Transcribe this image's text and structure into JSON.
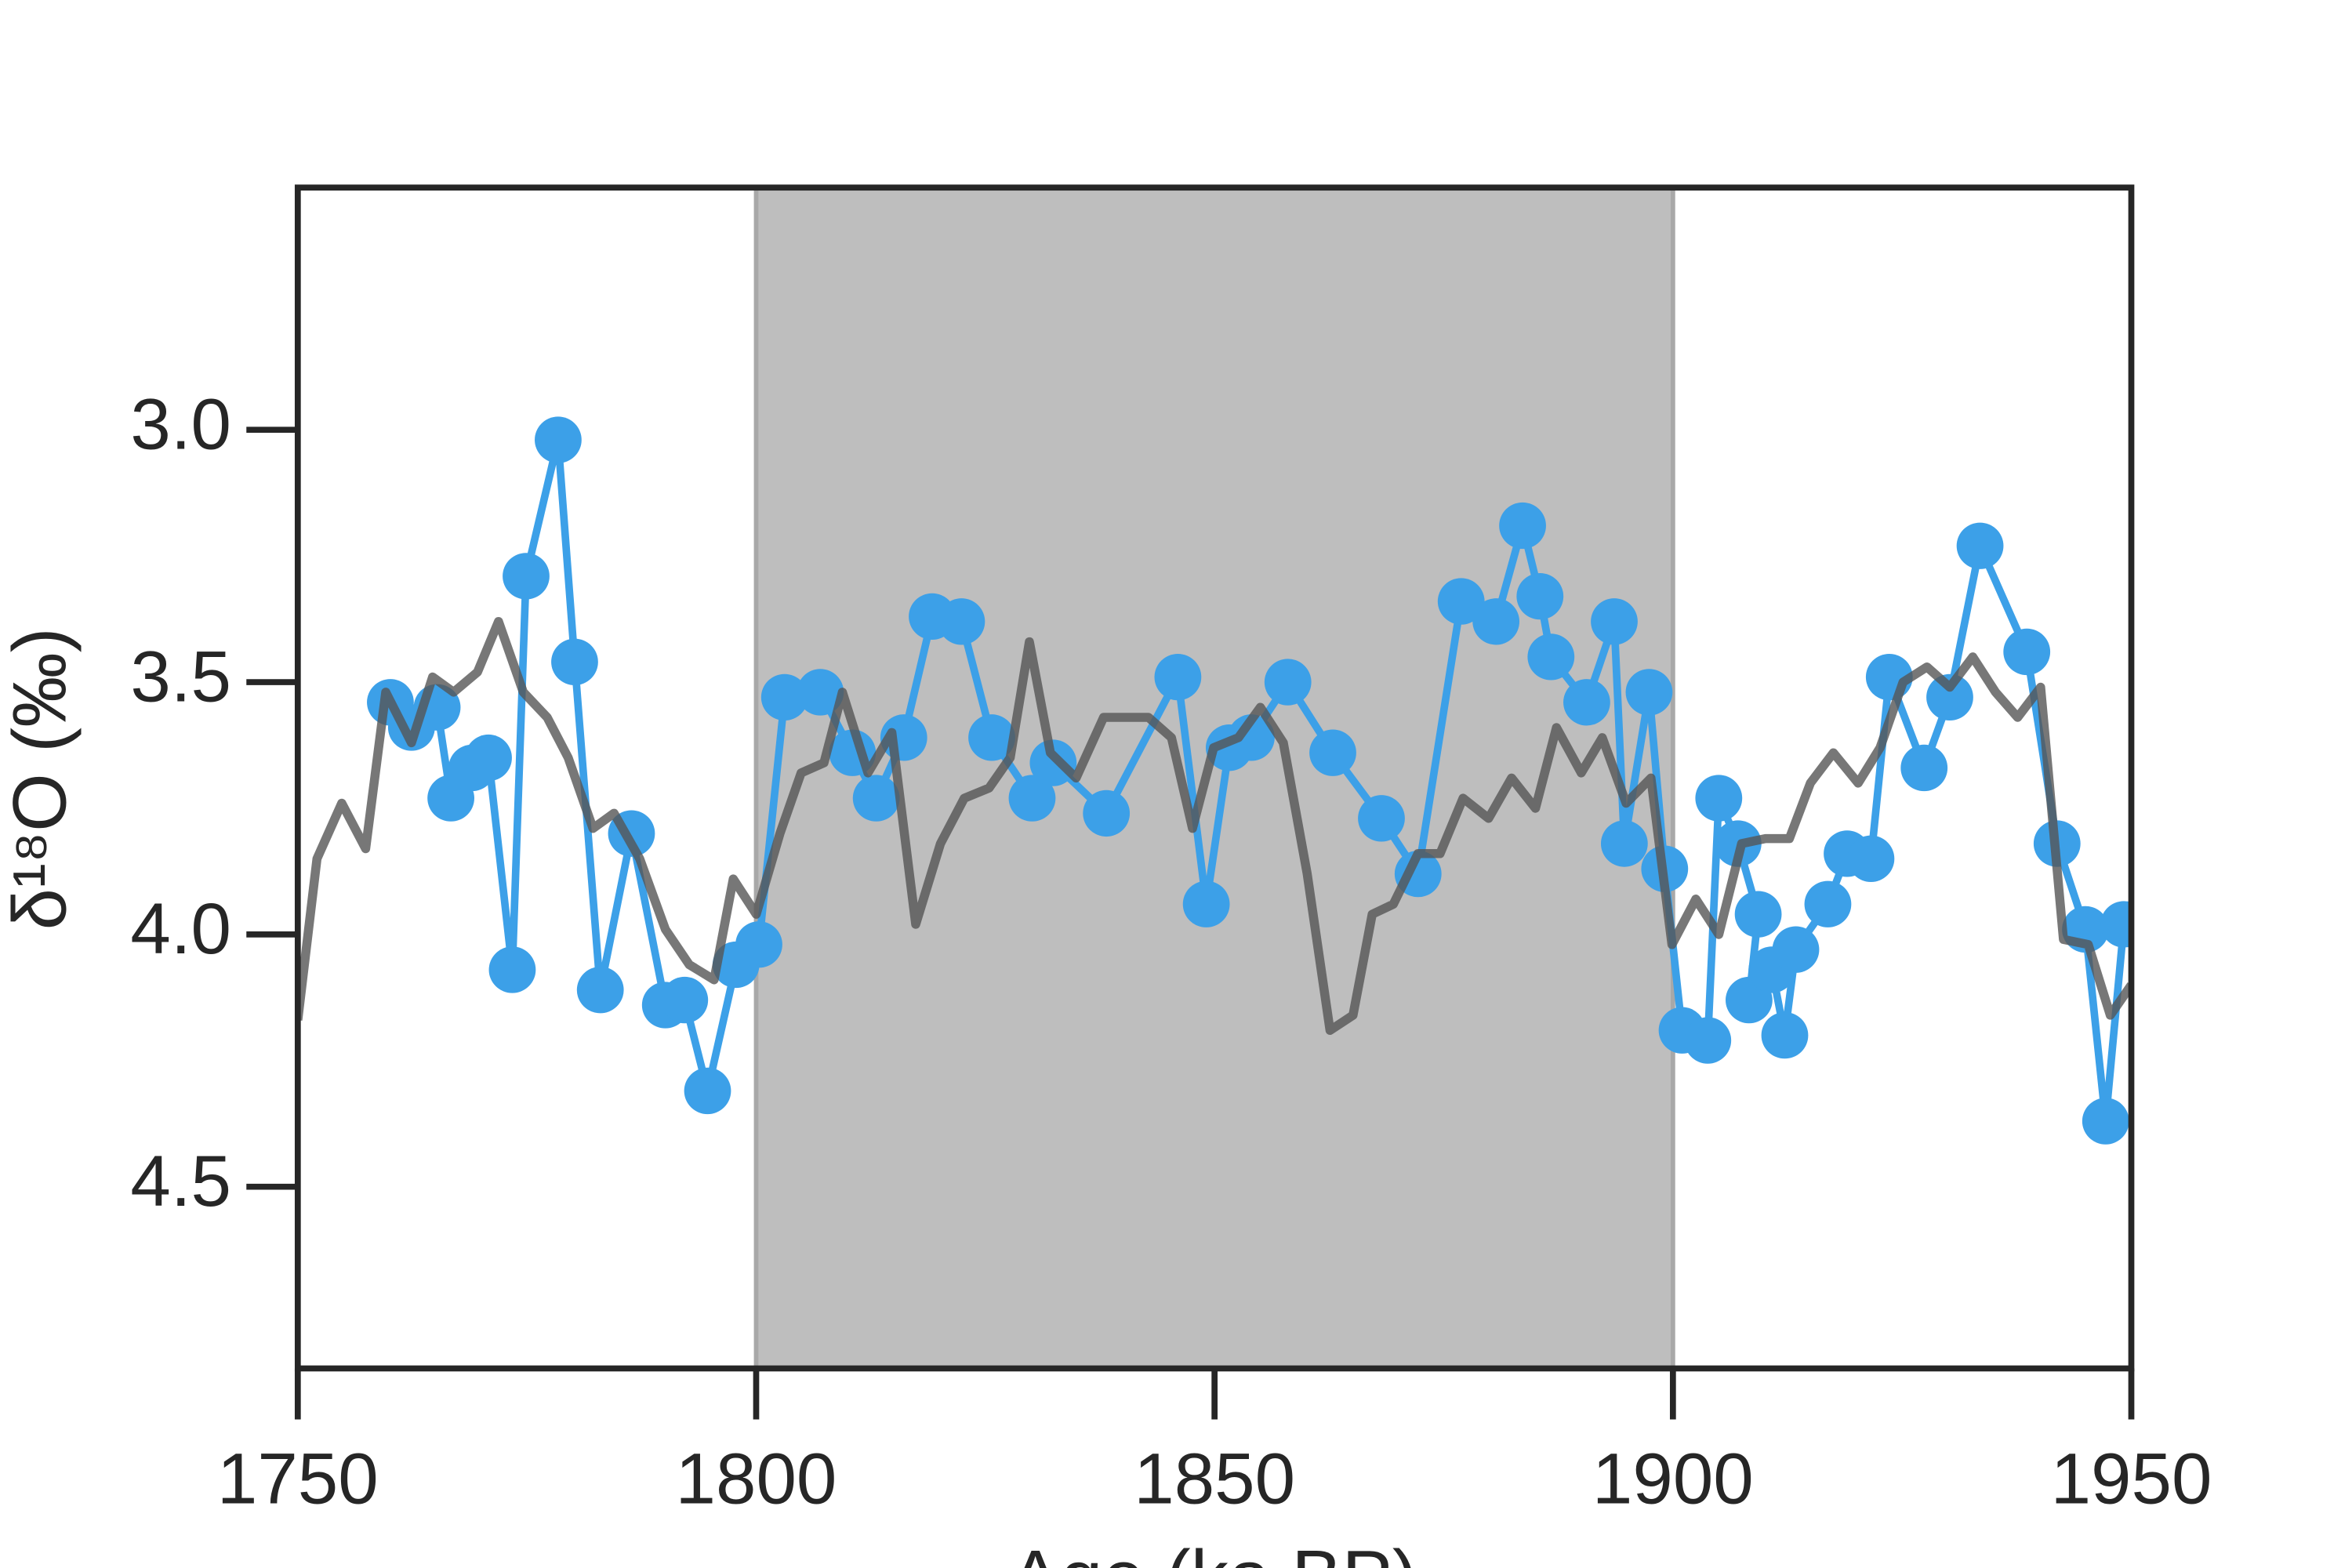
{
  "chart_data": {
    "type": "line",
    "xlabel": "Age (ka BP)",
    "ylabel": "δ¹⁸O (‰)",
    "xlim": [
      1750,
      1950
    ],
    "xticks": [
      1750,
      1800,
      1850,
      1900,
      1950
    ],
    "ylim": [
      2.52,
      4.86
    ],
    "yticks": [
      {
        "value": 3,
        "label": "3.0"
      },
      3.5,
      {
        "value": 4,
        "label": "4.0"
      },
      4.5
    ],
    "y_inverted": true,
    "spans": [
      {
        "x0": 1800,
        "x1": 1900,
        "color": "#bebebe"
      }
    ],
    "series": [
      {
        "color": "#3ca0e8",
        "marker": true,
        "x": [
          1760.1,
          1762.4,
          1765.2,
          1766.7,
          1769.0,
          1770.8,
          1773.4,
          1774.9,
          1778.4,
          1780.2,
          1783.0,
          1786.4,
          1790.1,
          1792.2,
          1794.7,
          1797.8,
          1800.3,
          1803.1,
          1807.0,
          1810.5,
          1813.1,
          1816.1,
          1819.2,
          1822.4,
          1825.7,
          1830.1,
          1832.4,
          1838.2,
          1846.0,
          1849.1,
          1851.6,
          1854.0,
          1858.0,
          1862.9,
          1868.2,
          1872.2,
          1876.9,
          1880.7,
          1883.6,
          1885.5,
          1886.7,
          1890.6,
          1893.6,
          1894.7,
          1897.4,
          1899.1,
          1901.0,
          1903.8,
          1905.0,
          1907.1,
          1909.3,
          1908.3,
          1910.8,
          1912.2,
          1913.4,
          1916.9,
          1919.0,
          1921.6,
          1923.6,
          1927.4,
          1930.2,
          1933.5,
          1938.6,
          1941.9,
          1945.0,
          1947.2,
          1949.2
        ],
        "values": [
          3.54,
          3.59,
          3.55,
          3.73,
          3.67,
          3.65,
          4.07,
          3.29,
          3.02,
          3.46,
          4.11,
          3.8,
          4.14,
          4.13,
          4.31,
          4.06,
          4.02,
          3.53,
          3.52,
          3.64,
          3.73,
          3.61,
          3.37,
          3.38,
          3.61,
          3.73,
          3.66,
          3.76,
          3.49,
          3.94,
          3.63,
          3.61,
          3.5,
          3.64,
          3.77,
          3.88,
          3.34,
          3.38,
          3.19,
          3.33,
          3.45,
          3.54,
          3.38,
          3.82,
          3.52,
          3.87,
          4.19,
          4.21,
          3.73,
          3.82,
          3.96,
          4.13,
          4.07,
          4.2,
          4.03,
          3.94,
          3.84,
          3.85,
          3.49,
          3.67,
          3.53,
          3.23,
          3.44,
          3.82,
          3.99,
          4.37,
          3.98
        ]
      },
      {
        "color": "#555555",
        "marker": false,
        "x": [
          1750,
          1752.1,
          1754.8,
          1757.4,
          1759.6,
          1762.4,
          1764.7,
          1767.0,
          1769.6,
          1771.9,
          1774.6,
          1777.2,
          1779.5,
          1782.2,
          1784.5,
          1787.3,
          1790.1,
          1792.7,
          1795.4,
          1797.5,
          1800.0,
          1802.6,
          1804.9,
          1807.4,
          1809.4,
          1812.2,
          1814.8,
          1817.4,
          1820.1,
          1822.7,
          1825.4,
          1827.7,
          1829.8,
          1832.1,
          1834.9,
          1837.9,
          1842.8,
          1845.3,
          1847.6,
          1849.9,
          1852.6,
          1855.0,
          1857.5,
          1860.1,
          1862.6,
          1865.1,
          1867.2,
          1869.5,
          1872.2,
          1874.6,
          1877.1,
          1879.9,
          1882.4,
          1885.0,
          1887.3,
          1890.0,
          1892.3,
          1894.9,
          1897.6,
          1899.9,
          1902.5,
          1905.0,
          1907.5,
          1910.1,
          1912.7,
          1915.0,
          1917.5,
          1920.2,
          1922.6,
          1925.1,
          1927.7,
          1930.2,
          1932.7,
          1935.2,
          1937.6,
          1940.1,
          1942.6,
          1945.3,
          1947.7,
          1950.0
        ],
        "values": [
          4.17,
          3.85,
          3.74,
          3.83,
          3.52,
          3.62,
          3.49,
          3.52,
          3.48,
          3.38,
          3.52,
          3.57,
          3.65,
          3.79,
          3.76,
          3.85,
          3.99,
          4.06,
          4.09,
          3.89,
          3.96,
          3.8,
          3.68,
          3.66,
          3.52,
          3.68,
          3.6,
          3.98,
          3.82,
          3.73,
          3.71,
          3.65,
          3.42,
          3.64,
          3.69,
          3.57,
          3.57,
          3.61,
          3.79,
          3.63,
          3.61,
          3.55,
          3.62,
          3.88,
          4.19,
          4.16,
          3.96,
          3.94,
          3.84,
          3.84,
          3.73,
          3.77,
          3.69,
          3.75,
          3.59,
          3.68,
          3.61,
          3.74,
          3.69,
          4.02,
          3.93,
          4.0,
          3.82,
          3.81,
          3.81,
          3.7,
          3.64,
          3.7,
          3.63,
          3.5,
          3.47,
          3.51,
          3.45,
          3.52,
          3.57,
          3.51,
          4.01,
          4.02,
          4.16,
          4.1
        ]
      }
    ]
  }
}
